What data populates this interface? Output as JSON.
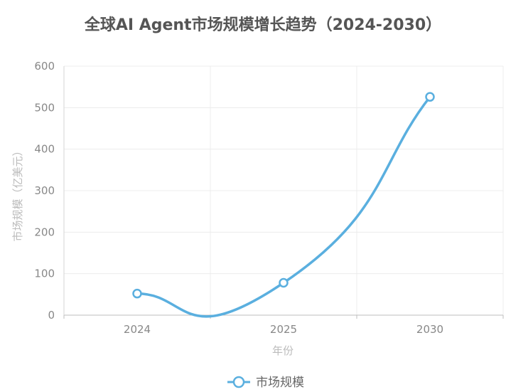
{
  "chart_data": {
    "type": "line",
    "title": "全球AI Agent市场规模增长趋势（2024-2030）",
    "xlabel": "年份",
    "ylabel": "市场规模（亿美元）",
    "categories": [
      "2024",
      "2025",
      "2030"
    ],
    "series": [
      {
        "name": "市场规模",
        "values": [
          52,
          78,
          526
        ],
        "color": "#5aafdf"
      }
    ],
    "ylim": [
      0,
      600
    ],
    "yticks": [
      0,
      100,
      200,
      300,
      400,
      500,
      600
    ],
    "grid": true,
    "smooth": true,
    "legend_position": "bottom"
  }
}
